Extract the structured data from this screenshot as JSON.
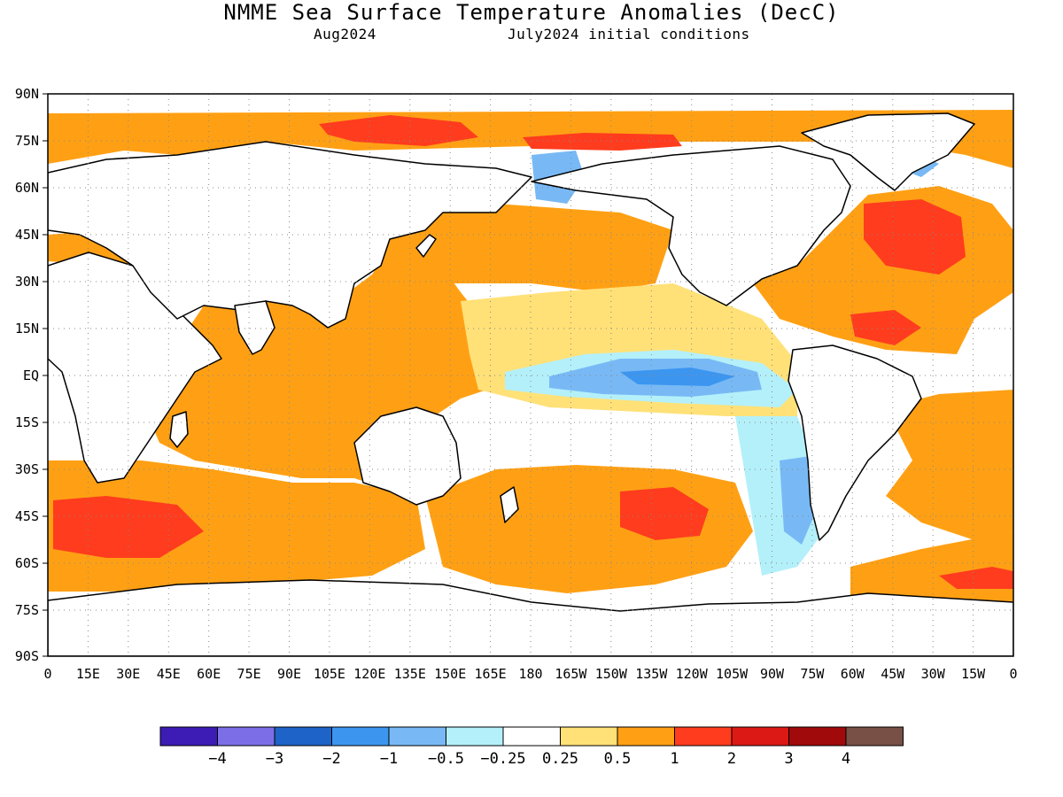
{
  "title": "NMME Sea Surface Temperature Anomalies (DecC)",
  "subtitle_left": "Aug2024",
  "subtitle_right": "July2024 initial conditions",
  "map": {
    "lon_labels": [
      "0",
      "15E",
      "30E",
      "45E",
      "60E",
      "75E",
      "90E",
      "105E",
      "120E",
      "135E",
      "150E",
      "165E",
      "180",
      "165W",
      "150W",
      "135W",
      "120W",
      "105W",
      "90W",
      "75W",
      "60W",
      "45W",
      "30W",
      "15W",
      "0"
    ],
    "lat_labels": [
      "90N",
      "75N",
      "60N",
      "45N",
      "30N",
      "15N",
      "EQ",
      "15S",
      "30S",
      "45S",
      "60S",
      "75S",
      "90S"
    ],
    "grid": "dotted"
  },
  "colors": {
    "c_m4": "#3c1cb4",
    "c_m3": "#7b6ee6",
    "c_m2": "#1e64c8",
    "c_m1": "#3c96f0",
    "c_m05": "#78b9f5",
    "c_m025": "#b4f0fa",
    "c_0": "#ffffff",
    "c_025": "#ffe178",
    "c_05": "#ffa014",
    "c_1": "#ff3c1e",
    "c_2": "#dc1914",
    "c_3": "#a00a0a",
    "c_4": "#785046",
    "land": "#ffffff",
    "coast": "#000000"
  },
  "colorbar": {
    "colors": [
      "#3c1cb4",
      "#7b6ee6",
      "#1e64c8",
      "#3c96f0",
      "#78b9f5",
      "#b4f0fa",
      "#ffffff",
      "#ffe178",
      "#ffa014",
      "#ff3c1e",
      "#dc1914",
      "#a00a0a",
      "#785046"
    ],
    "labels": [
      "−4",
      "−3",
      "−2",
      "−1",
      "−0.5",
      "−0.25",
      "0.25",
      "0.5",
      "1",
      "2",
      "3",
      "4"
    ]
  }
}
